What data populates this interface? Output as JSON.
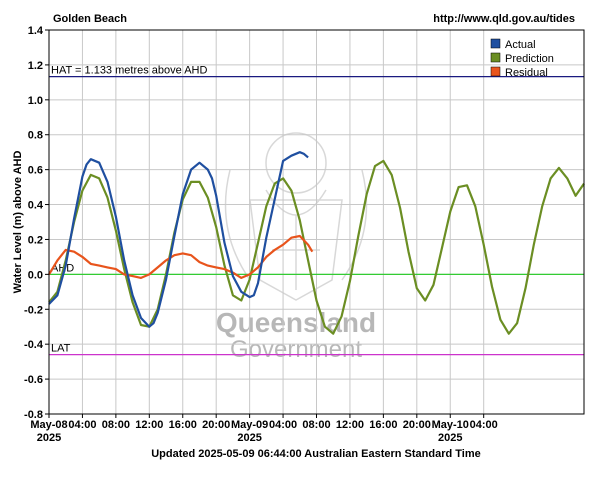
{
  "header": {
    "station": "Golden Beach",
    "url": "http://www.qld.gov.au/tides"
  },
  "footer": {
    "updated": "Updated 2025-05-09 06:44:00 Australian Eastern Standard Time"
  },
  "watermark": {
    "line1": "Queensland",
    "line2": "Government"
  },
  "chart_data": {
    "type": "line",
    "title": "Golden Beach",
    "ylabel": "Water Level (m) above AHD",
    "xlabel": "",
    "ylim": [
      -0.8,
      1.4
    ],
    "xlim_hours": [
      0,
      64
    ],
    "grid": true,
    "legend_position": "top-right",
    "y_ticks": [
      "-0.8",
      "-0.6",
      "-0.4",
      "-0.2",
      "0.0",
      "0.2",
      "0.4",
      "0.6",
      "0.8",
      "1.0",
      "1.2",
      "1.4"
    ],
    "x_ticks": [
      {
        "hour": 0,
        "label": "May-08",
        "label2": "2025"
      },
      {
        "hour": 4,
        "label": "04:00"
      },
      {
        "hour": 8,
        "label": "08:00"
      },
      {
        "hour": 12,
        "label": "12:00"
      },
      {
        "hour": 16,
        "label": "16:00"
      },
      {
        "hour": 20,
        "label": "20:00"
      },
      {
        "hour": 24,
        "label": "May-09",
        "label2": "2025"
      },
      {
        "hour": 28,
        "label": "04:00"
      },
      {
        "hour": 32,
        "label": "08:00"
      },
      {
        "hour": 36,
        "label": "12:00"
      },
      {
        "hour": 40,
        "label": "16:00"
      },
      {
        "hour": 44,
        "label": "20:00"
      },
      {
        "hour": 48,
        "label": "May-10",
        "label2": "2025"
      },
      {
        "hour": 52,
        "label": "04:00"
      }
    ],
    "reference_lines": [
      {
        "name": "HAT",
        "value": 1.133,
        "label": "HAT = 1.133 metres above AHD",
        "color": "#1a1a80"
      },
      {
        "name": "AHD",
        "value": 0.0,
        "label": "AHD",
        "color": "#33cc33"
      },
      {
        "name": "LAT",
        "value": -0.46,
        "label": "LAT",
        "color": "#cc33cc"
      }
    ],
    "series": [
      {
        "name": "Actual",
        "color": "#1f4fa0",
        "x": [
          0,
          1,
          2,
          3,
          4,
          4.5,
          5,
          6,
          7,
          8,
          9,
          10,
          11,
          12,
          12.5,
          13,
          14,
          15,
          16,
          17,
          18,
          19,
          19.5,
          20,
          21,
          22,
          23,
          24,
          24.5,
          25,
          26,
          27,
          28,
          29,
          30,
          30.5,
          31
        ],
        "y": [
          -0.17,
          -0.12,
          0.05,
          0.32,
          0.56,
          0.63,
          0.66,
          0.64,
          0.53,
          0.33,
          0.08,
          -0.12,
          -0.25,
          -0.3,
          -0.28,
          -0.22,
          -0.03,
          0.22,
          0.46,
          0.6,
          0.64,
          0.6,
          0.55,
          0.45,
          0.18,
          -0.01,
          -0.1,
          -0.13,
          -0.12,
          -0.05,
          0.21,
          0.43,
          0.65,
          0.68,
          0.7,
          0.69,
          0.67
        ]
      },
      {
        "name": "Prediction",
        "color": "#6b8e23",
        "x": [
          0,
          1,
          2,
          3,
          4,
          5,
          6,
          7,
          8,
          9,
          10,
          11,
          12,
          13,
          14,
          15,
          16,
          17,
          18,
          19,
          20,
          21,
          22,
          23,
          24,
          25,
          26,
          27,
          28,
          29,
          30,
          31,
          32,
          33,
          34,
          35,
          36,
          37,
          38,
          39,
          40,
          41,
          42,
          43,
          44,
          45,
          46,
          47,
          48,
          49,
          50,
          51,
          52,
          53,
          54,
          55,
          56,
          57,
          58,
          59,
          60,
          61,
          62,
          63,
          64
        ],
        "y": [
          -0.16,
          -0.1,
          0.08,
          0.3,
          0.48,
          0.57,
          0.55,
          0.44,
          0.25,
          0.03,
          -0.16,
          -0.29,
          -0.3,
          -0.2,
          0.0,
          0.24,
          0.43,
          0.53,
          0.53,
          0.44,
          0.27,
          0.05,
          -0.12,
          -0.15,
          -0.03,
          0.18,
          0.39,
          0.52,
          0.55,
          0.48,
          0.31,
          0.08,
          -0.15,
          -0.3,
          -0.34,
          -0.24,
          -0.04,
          0.22,
          0.46,
          0.62,
          0.65,
          0.57,
          0.38,
          0.13,
          -0.08,
          -0.15,
          -0.06,
          0.15,
          0.36,
          0.5,
          0.51,
          0.39,
          0.17,
          -0.07,
          -0.26,
          -0.34,
          -0.28,
          -0.08,
          0.17,
          0.39,
          0.55,
          0.61,
          0.55,
          0.45,
          0.52
        ]
      },
      {
        "name": "Residual",
        "color": "#e8541c",
        "x": [
          0,
          1,
          2,
          3,
          4,
          5,
          6,
          7,
          8,
          9,
          10,
          11,
          12,
          13,
          14,
          15,
          16,
          17,
          18,
          19,
          20,
          21,
          22,
          23,
          24,
          25,
          26,
          27,
          28,
          29,
          30,
          31,
          31.5
        ],
        "y": [
          0.0,
          0.08,
          0.14,
          0.13,
          0.1,
          0.06,
          0.05,
          0.04,
          0.03,
          0.0,
          -0.01,
          -0.02,
          0.0,
          0.04,
          0.08,
          0.11,
          0.12,
          0.11,
          0.07,
          0.05,
          0.04,
          0.03,
          0.01,
          -0.02,
          0.0,
          0.04,
          0.1,
          0.14,
          0.17,
          0.21,
          0.22,
          0.17,
          0.13
        ]
      }
    ]
  }
}
